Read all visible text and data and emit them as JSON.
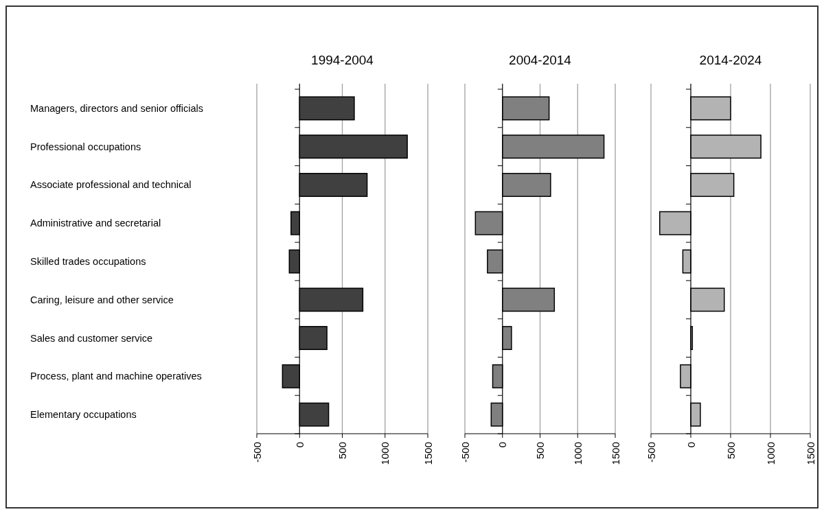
{
  "chart_data": [
    {
      "type": "bar",
      "orientation": "horizontal",
      "title": "1994-2004",
      "categories": [
        "Managers, directors and senior officials",
        "Professional occupations",
        "Associate professional and technical",
        "Administrative and secretarial",
        "Skilled trades occupations",
        "Caring, leisure and other service",
        "Sales and customer service",
        "Process, plant and machine operatives",
        "Elementary occupations"
      ],
      "values": [
        640,
        1260,
        790,
        -100,
        -120,
        740,
        320,
        -200,
        340
      ],
      "color": "#404040",
      "xlim": [
        -500,
        1500
      ],
      "xticks": [
        -500,
        0,
        500,
        1000,
        1500
      ],
      "grid": "x"
    },
    {
      "type": "bar",
      "orientation": "horizontal",
      "title": "2004-2014",
      "categories": [
        null,
        null,
        null,
        null,
        null,
        null,
        null,
        null,
        null
      ],
      "values": [
        620,
        1350,
        640,
        -360,
        -200,
        690,
        120,
        -130,
        -150
      ],
      "color": "#808080",
      "xlim": [
        -500,
        1500
      ],
      "xticks": [
        -500,
        0,
        500,
        1000,
        1500
      ],
      "grid": "x"
    },
    {
      "type": "bar",
      "orientation": "horizontal",
      "title": "2014-2024",
      "categories": [
        null,
        null,
        null,
        null,
        null,
        null,
        null,
        null,
        null
      ],
      "values": [
        500,
        880,
        540,
        -390,
        -100,
        420,
        20,
        -130,
        120
      ],
      "color": "#b3b3b3",
      "xlim": [
        -500,
        1500
      ],
      "xticks": [
        -500,
        0,
        500,
        1000,
        1500
      ],
      "grid": "x"
    }
  ]
}
